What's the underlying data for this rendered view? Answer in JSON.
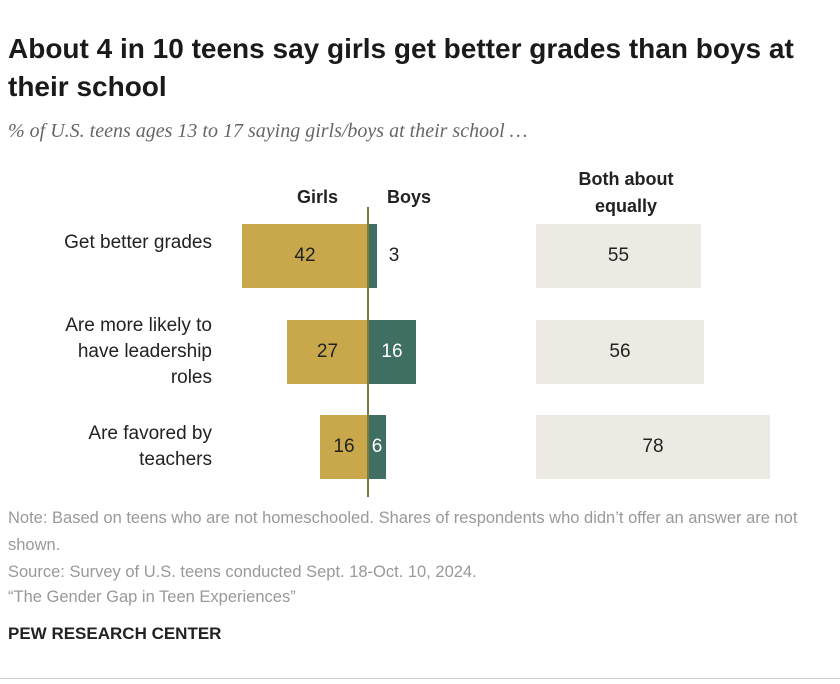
{
  "chart_data": {
    "type": "diverging-bar",
    "title": "About 4 in 10 teens say girls get better grades than boys at their school",
    "subtitle": "% of U.S. teens ages 13 to 17 saying girls/boys at their school …",
    "categories": [
      "Get better grades",
      "Are more likely to have leadership roles",
      "Are favored by teachers"
    ],
    "series": [
      {
        "name": "Girls",
        "color": "#c8a84b",
        "values": [
          42,
          27,
          16
        ]
      },
      {
        "name": "Boys",
        "color": "#3f6e62",
        "values": [
          3,
          16,
          6
        ]
      },
      {
        "name": "Both about equally",
        "color": "#edeae3",
        "values": [
          55,
          56,
          78
        ]
      }
    ],
    "note": "Note: Based on teens who are not homeschooled. Shares of respondents who didn’t offer an answer are not shown.",
    "source": "Source: Survey of U.S. teens conducted Sept. 18-Oct. 10, 2024.",
    "report": "“The Gender Gap in Teen Experiences”",
    "credit": "PEW RESEARCH CENTER"
  }
}
